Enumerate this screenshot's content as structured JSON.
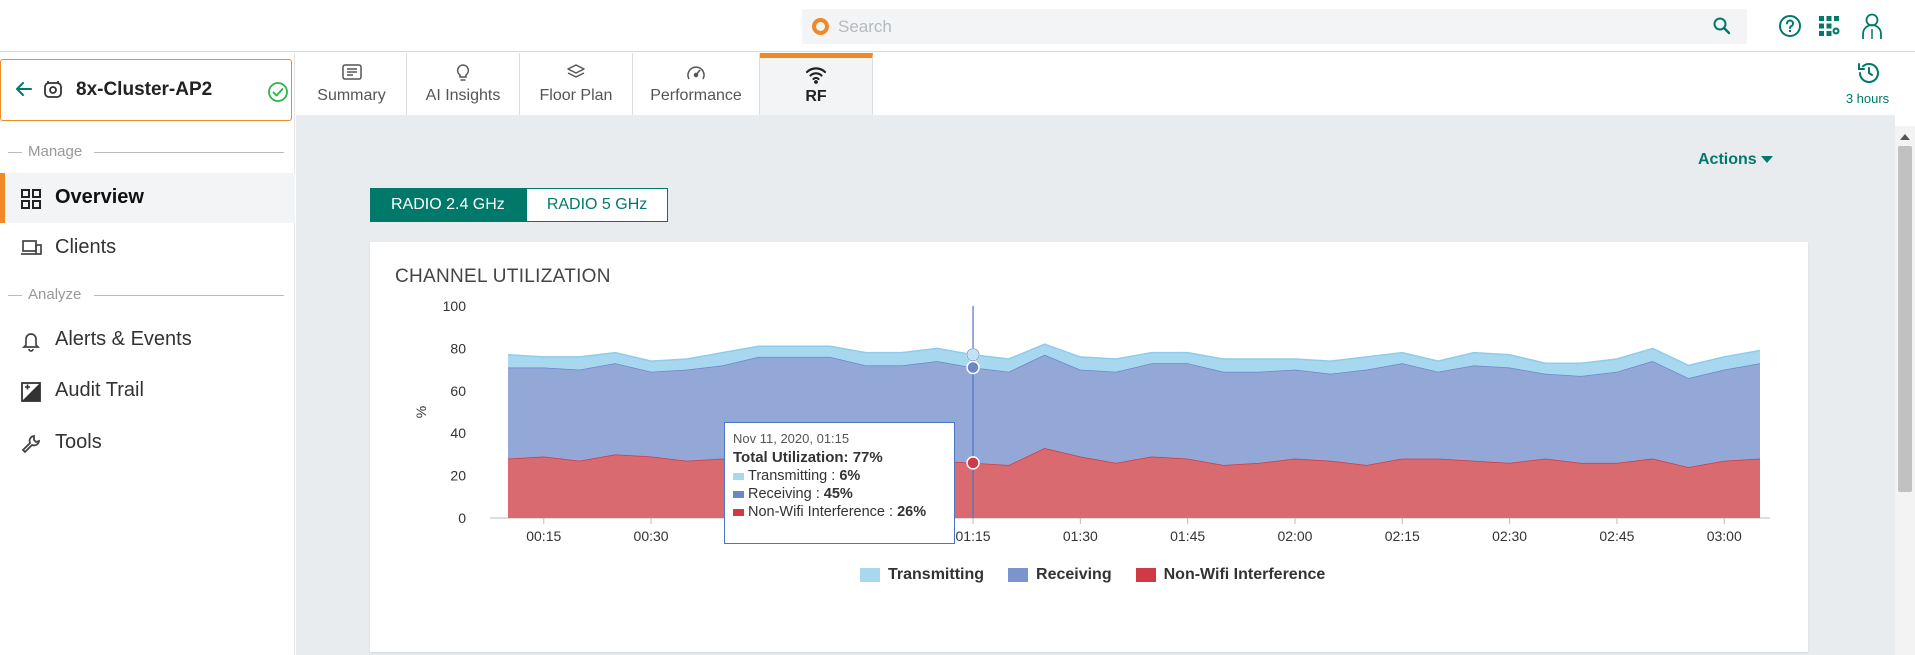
{
  "search": {
    "placeholder": "Search"
  },
  "device": {
    "name": "8x-Cluster-AP2"
  },
  "sidebar": {
    "sections": [
      {
        "label": "Manage"
      },
      {
        "label": "Analyze"
      }
    ],
    "items": [
      {
        "label": "Overview",
        "icon": "grid-icon",
        "active": true
      },
      {
        "label": "Clients",
        "icon": "devices-icon"
      },
      {
        "label": "Alerts & Events",
        "icon": "bell-icon"
      },
      {
        "label": "Audit Trail",
        "icon": "audit-icon"
      },
      {
        "label": "Tools",
        "icon": "wrench-icon"
      }
    ]
  },
  "tabs": [
    {
      "label": "Summary",
      "icon": "summary-icon"
    },
    {
      "label": "AI Insights",
      "icon": "lightbulb-icon"
    },
    {
      "label": "Floor Plan",
      "icon": "layers-icon"
    },
    {
      "label": "Performance",
      "icon": "gauge-icon"
    },
    {
      "label": "RF",
      "icon": "wifi-icon",
      "active": true
    }
  ],
  "time_range": {
    "label": "3 hours"
  },
  "actions": {
    "label": "Actions"
  },
  "radio_tabs": [
    {
      "label": "RADIO 2.4 GHz",
      "active": true
    },
    {
      "label": "RADIO 5 GHz"
    }
  ],
  "card": {
    "title": "CHANNEL UTILIZATION"
  },
  "colors": {
    "accent": "#f08a24",
    "teal": "#00796b",
    "transmitting": "#a8d8f0",
    "receiving": "#7b93cf",
    "interference": "#cf3a45"
  },
  "chart_data": {
    "type": "area",
    "stacked": true,
    "ylabel": "%",
    "ylim": [
      0,
      100
    ],
    "yticks": [
      0,
      20,
      40,
      60,
      80,
      100
    ],
    "xlim": [
      "00:10",
      "03:05"
    ],
    "xtick_labels": [
      "00:15",
      "00:30",
      "00:45",
      "01:00",
      "01:15",
      "01:30",
      "01:45",
      "02:00",
      "02:15",
      "02:30",
      "02:45",
      "03:00"
    ],
    "x": [
      "00:10",
      "00:15",
      "00:20",
      "00:25",
      "00:30",
      "00:35",
      "00:40",
      "00:45",
      "00:50",
      "00:55",
      "01:00",
      "01:05",
      "01:10",
      "01:15",
      "01:20",
      "01:25",
      "01:30",
      "01:35",
      "01:40",
      "01:45",
      "01:50",
      "01:55",
      "02:00",
      "02:05",
      "02:10",
      "02:15",
      "02:20",
      "02:25",
      "02:30",
      "02:35",
      "02:40",
      "02:45",
      "02:50",
      "02:55",
      "03:00",
      "03:05"
    ],
    "series": [
      {
        "name": "Non-Wifi Interference",
        "values": [
          28,
          29,
          27,
          30,
          29,
          27,
          28,
          27,
          28,
          29,
          28,
          27,
          27,
          26,
          25,
          33,
          29,
          26,
          29,
          28,
          25,
          26,
          28,
          27,
          25,
          28,
          28,
          27,
          26,
          28,
          26,
          26,
          28,
          24,
          27,
          28
        ]
      },
      {
        "name": "Receiving",
        "values": [
          43,
          42,
          43,
          43,
          40,
          43,
          44,
          49,
          48,
          47,
          44,
          45,
          47,
          45,
          44,
          44,
          41,
          43,
          44,
          45,
          44,
          43,
          42,
          41,
          45,
          45,
          41,
          45,
          45,
          40,
          41,
          43,
          46,
          42,
          43,
          45
        ]
      },
      {
        "name": "Transmitting",
        "values": [
          6,
          5,
          6,
          5,
          5,
          5,
          6,
          5,
          5,
          5,
          6,
          6,
          6,
          6,
          6,
          5,
          6,
          6,
          5,
          5,
          6,
          6,
          5,
          6,
          6,
          5,
          5,
          6,
          6,
          5,
          6,
          6,
          6,
          6,
          6,
          6
        ]
      }
    ],
    "legend_position": "bottom",
    "grid": false,
    "tooltip": {
      "date": "Nov 11, 2020, 01:15",
      "total_label": "Total Utilization:",
      "total_value": "77%",
      "rows": [
        {
          "label": "Transmitting :",
          "value": "6%"
        },
        {
          "label": "Receiving :",
          "value": "45%"
        },
        {
          "label": "Non-Wifi Interference :",
          "value": "26%"
        }
      ]
    },
    "cursor_x": "01:15"
  }
}
